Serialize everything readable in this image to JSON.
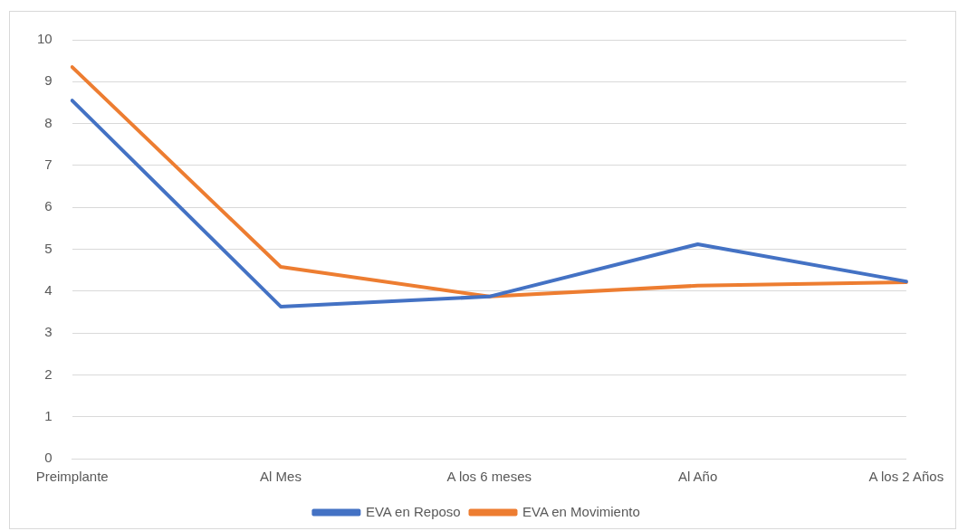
{
  "chart_data": {
    "type": "line",
    "categories": [
      "Preimplante",
      "Al Mes",
      "A los 6 meses",
      "Al Año",
      "A los 2 Años"
    ],
    "series": [
      {
        "name": "EVA en Reposo",
        "color": "#4472c4",
        "values": [
          8.55,
          3.63,
          3.87,
          5.12,
          4.23
        ]
      },
      {
        "name": "EVA en Movimiento",
        "color": "#ed7d31",
        "values": [
          9.35,
          4.58,
          3.87,
          4.13,
          4.21
        ]
      }
    ],
    "ylim": [
      0,
      10
    ],
    "yticks": [
      0,
      1,
      2,
      3,
      4,
      5,
      6,
      7,
      8,
      9,
      10
    ],
    "grid": "y",
    "legend": "bottom",
    "marker": "none",
    "line_style": "solid"
  }
}
